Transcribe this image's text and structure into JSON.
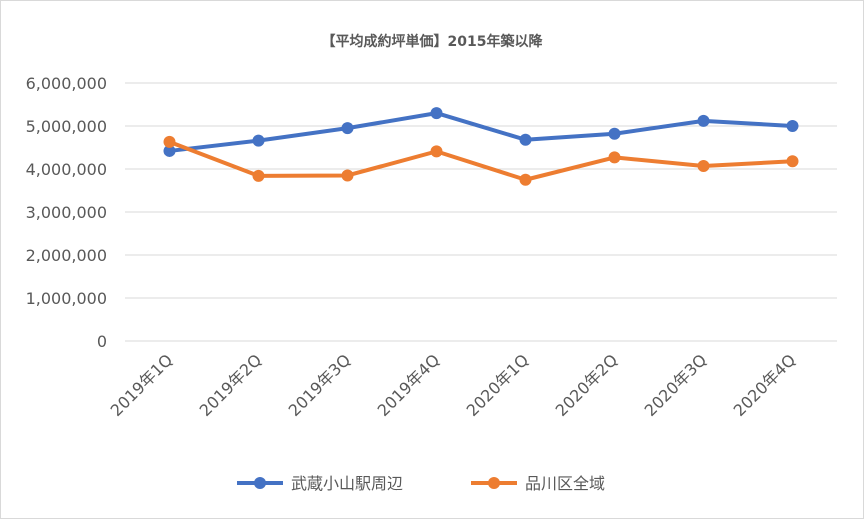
{
  "chart_data": {
    "type": "line",
    "title": "【平均成約坪単価】2015年築以降",
    "categories": [
      "2019年1Q",
      "2019年2Q",
      "2019年3Q",
      "2019年4Q",
      "2020年1Q",
      "2020年2Q",
      "2020年3Q",
      "2020年4Q"
    ],
    "series": [
      {
        "name": "武蔵小山駅周辺",
        "color": "#4472c4",
        "values": [
          4420000,
          4660000,
          4950000,
          5300000,
          4680000,
          4820000,
          5120000,
          5000000
        ]
      },
      {
        "name": "品川区全域",
        "color": "#ed7d31",
        "values": [
          4630000,
          3840000,
          3850000,
          4410000,
          3750000,
          4270000,
          4070000,
          4180000
        ]
      }
    ],
    "ylim": [
      0,
      6000000
    ],
    "yticks": [
      0,
      1000000,
      2000000,
      3000000,
      4000000,
      5000000,
      6000000
    ],
    "ytick_labels": [
      "0",
      "1,000,000",
      "2,000,000",
      "3,000,000",
      "4,000,000",
      "5,000,000",
      "6,000,000"
    ],
    "grid": true,
    "legend_position": "bottom"
  }
}
